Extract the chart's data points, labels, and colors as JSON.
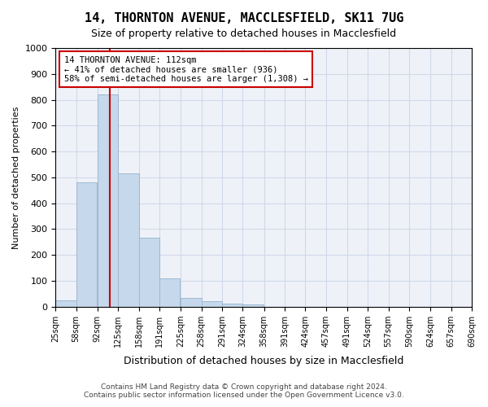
{
  "title": "14, THORNTON AVENUE, MACCLESFIELD, SK11 7UG",
  "subtitle": "Size of property relative to detached houses in Macclesfield",
  "xlabel": "Distribution of detached houses by size in Macclesfield",
  "ylabel": "Number of detached properties",
  "categories": [
    "25sqm",
    "58sqm",
    "92sqm",
    "125sqm",
    "158sqm",
    "191sqm",
    "225sqm",
    "258sqm",
    "291sqm",
    "324sqm",
    "358sqm",
    "391sqm",
    "424sqm",
    "457sqm",
    "491sqm",
    "524sqm",
    "557sqm",
    "590sqm",
    "624sqm",
    "657sqm",
    "690sqm"
  ],
  "bin_edges": [
    25,
    58,
    92,
    125,
    158,
    191,
    225,
    258,
    291,
    324,
    358,
    391,
    424,
    457,
    491,
    524,
    557,
    590,
    624,
    657,
    690
  ],
  "bar_heights": [
    25,
    480,
    820,
    515,
    265,
    110,
    35,
    20,
    10,
    8,
    0,
    0,
    0,
    0,
    0,
    0,
    0,
    0,
    0,
    0
  ],
  "bar_color": "#c5d8ec",
  "bar_edge_color": "#a0b8d0",
  "vline_x": 112,
  "vline_color": "#cc0000",
  "ylim": [
    0,
    1000
  ],
  "yticks": [
    0,
    100,
    200,
    300,
    400,
    500,
    600,
    700,
    800,
    900,
    1000
  ],
  "grid_color": "#d0d8e8",
  "background_color": "#eef2f8",
  "annotation_text": "14 THORNTON AVENUE: 112sqm\n← 41% of detached houses are smaller (936)\n58% of semi-detached houses are larger (1,308) →",
  "annotation_box_color": "#ffffff",
  "annotation_box_edge": "#cc0000",
  "footer1": "Contains HM Land Registry data © Crown copyright and database right 2024.",
  "footer2": "Contains public sector information licensed under the Open Government Licence v3.0."
}
